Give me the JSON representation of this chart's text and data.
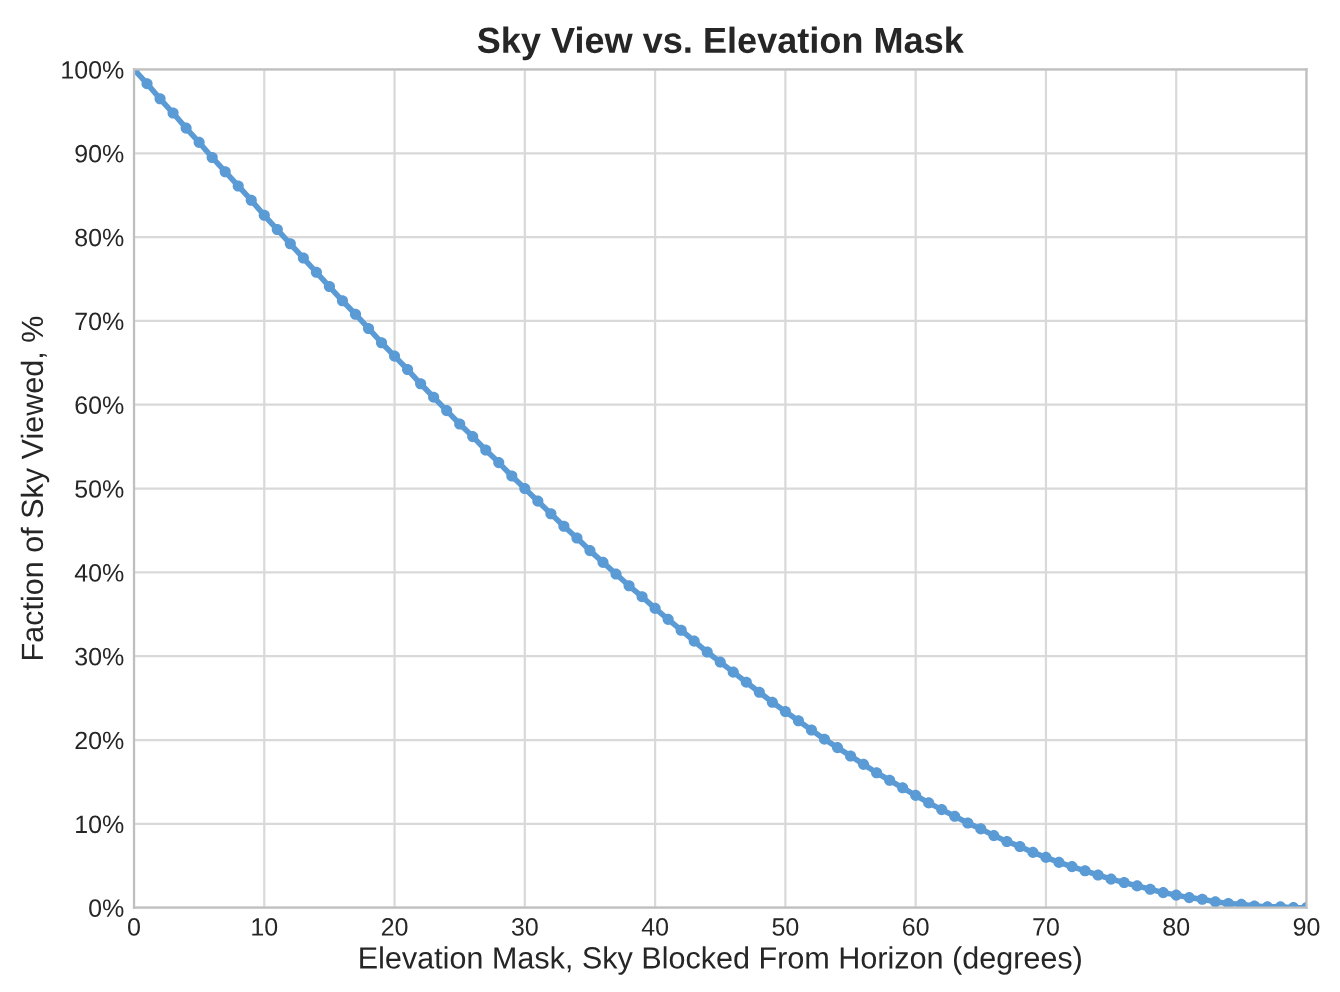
{
  "chart_data": {
    "type": "line",
    "title": "Sky View vs. Elevation Mask",
    "xlabel": "Elevation Mask, Sky Blocked From Horizon (degrees)",
    "ylabel": "Faction of Sky Viewed, %",
    "x": [
      0,
      1,
      2,
      3,
      4,
      5,
      6,
      7,
      8,
      9,
      10,
      11,
      12,
      13,
      14,
      15,
      16,
      17,
      18,
      19,
      20,
      21,
      22,
      23,
      24,
      25,
      26,
      27,
      28,
      29,
      30,
      31,
      32,
      33,
      34,
      35,
      36,
      37,
      38,
      39,
      40,
      41,
      42,
      43,
      44,
      45,
      46,
      47,
      48,
      49,
      50,
      51,
      52,
      53,
      54,
      55,
      56,
      57,
      58,
      59,
      60,
      61,
      62,
      63,
      64,
      65,
      66,
      67,
      68,
      69,
      70,
      71,
      72,
      73,
      74,
      75,
      76,
      77,
      78,
      79,
      80,
      81,
      82,
      83,
      84,
      85,
      86,
      87,
      88,
      89,
      90
    ],
    "series": [
      {
        "color": "#5b9bd5",
        "values": [
          100.0,
          98.3,
          96.5,
          94.8,
          93.0,
          91.3,
          89.5,
          87.8,
          86.1,
          84.4,
          82.6,
          80.9,
          79.2,
          77.5,
          75.8,
          74.1,
          72.4,
          70.8,
          69.1,
          67.4,
          65.8,
          64.2,
          62.5,
          60.9,
          59.3,
          57.7,
          56.2,
          54.6,
          53.1,
          51.5,
          50.0,
          48.5,
          47.0,
          45.5,
          44.1,
          42.6,
          41.2,
          39.8,
          38.4,
          37.1,
          35.7,
          34.4,
          33.1,
          31.8,
          30.5,
          29.3,
          28.1,
          26.9,
          25.7,
          24.5,
          23.4,
          22.3,
          21.2,
          20.1,
          19.1,
          18.1,
          17.1,
          16.1,
          15.2,
          14.3,
          13.4,
          12.5,
          11.7,
          10.9,
          10.1,
          9.4,
          8.6,
          7.9,
          7.3,
          6.6,
          6.0,
          5.4,
          4.9,
          4.4,
          3.9,
          3.4,
          3.0,
          2.6,
          2.2,
          1.8,
          1.5,
          1.2,
          1.0,
          0.7,
          0.5,
          0.4,
          0.2,
          0.1,
          0.1,
          0.0,
          0.0
        ]
      }
    ],
    "xlim": [
      0,
      90
    ],
    "xticks": [
      0,
      10,
      20,
      30,
      40,
      50,
      60,
      70,
      80,
      90
    ],
    "ylim": [
      0,
      100
    ],
    "yticks": [
      {
        "value": 0,
        "label": "0%"
      },
      {
        "value": 10,
        "label": "10%"
      },
      {
        "value": 20,
        "label": "20%"
      },
      {
        "value": 30,
        "label": "30%"
      },
      {
        "value": 40,
        "label": "40%"
      },
      {
        "value": 50,
        "label": "50%"
      },
      {
        "value": 60,
        "label": "60%"
      },
      {
        "value": 70,
        "label": "70%"
      },
      {
        "value": 80,
        "label": "80%"
      },
      {
        "value": 90,
        "label": "90%"
      },
      {
        "value": 100,
        "label": "100%"
      }
    ],
    "grid": true,
    "marker": "circle",
    "line_style": "solid",
    "legend": false
  }
}
